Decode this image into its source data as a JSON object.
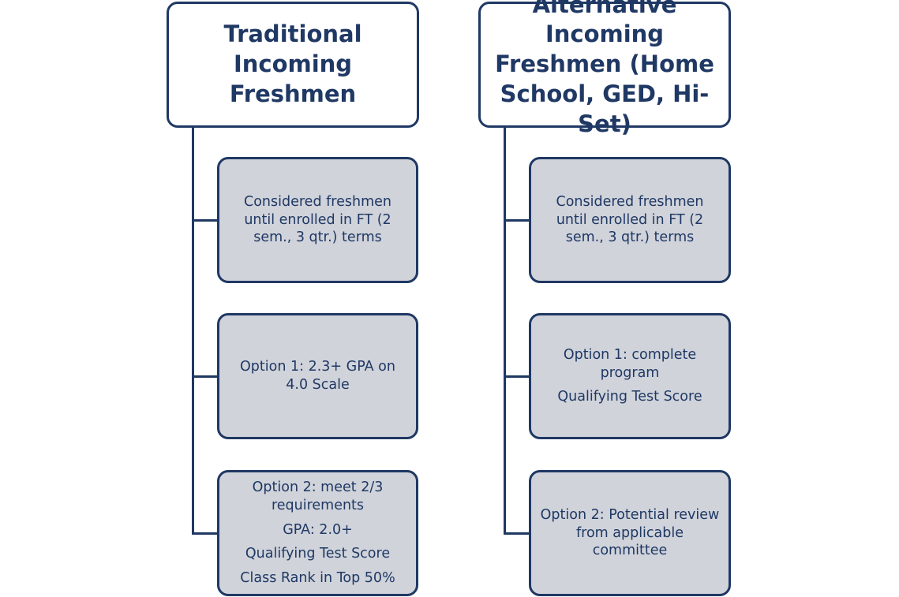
{
  "colors": {
    "accent": "#1f3864",
    "box_fill": "#d0d3da",
    "header_fill": "#ffffff"
  },
  "columns": [
    {
      "header": [
        "Traditional Incoming",
        "Freshmen"
      ],
      "boxes": [
        [
          "Considered freshmen until enrolled in FT (2 sem., 3 qtr.) terms"
        ],
        [
          "Option 1: 2.3+ GPA on 4.0 Scale"
        ],
        [
          "Option 2: meet 2/3 requirements",
          "GPA: 2.0+",
          "Qualifying Test Score",
          "Class Rank in Top 50%"
        ]
      ]
    },
    {
      "header": [
        "Alternative Incoming",
        "Freshmen (Home",
        "School, GED, Hi-Set)"
      ],
      "boxes": [
        [
          "Considered freshmen until enrolled in FT (2 sem., 3 qtr.) terms"
        ],
        [
          "Option 1: complete program",
          "Qualifying Test Score"
        ],
        [
          "Option 2: Potential review from applicable committee"
        ]
      ]
    }
  ]
}
